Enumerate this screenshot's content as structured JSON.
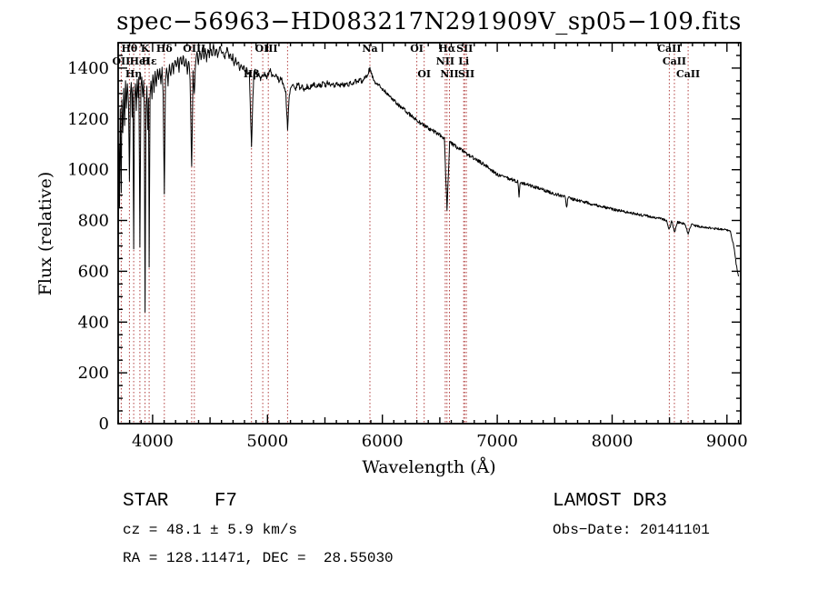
{
  "annotations": {
    "class_label": "STAR    F7",
    "survey": "LAMOST DR3",
    "cz": "cz = 48.1 ± 5.9 km/s",
    "obs_date": "Obs−Date: 20141101",
    "ra_dec": "RA = 128.11471, DEC =  28.55030"
  },
  "chart_data": {
    "type": "line",
    "title": "spec−56963−HD083217N291909V_sp05−109.fits",
    "xlabel": "Wavelength (Å)",
    "ylabel": "Flux (relative)",
    "xlim": [
      3700,
      9120
    ],
    "ylim": [
      0,
      1500
    ],
    "x_ticks": [
      4000,
      5000,
      6000,
      7000,
      8000,
      9000
    ],
    "y_ticks": [
      0,
      200,
      400,
      600,
      800,
      1000,
      1200,
      1400
    ],
    "x_minor_step": 100,
    "y_minor_step": 50,
    "grid": false,
    "legend": "none",
    "axis_color": "#000000",
    "line_color": "#000000",
    "marker_line_color": "#b24040",
    "label_color": "#5a1616",
    "spectral_markers": [
      3727,
      3798,
      3835,
      3889,
      3934,
      3970,
      4102,
      4340,
      4363,
      4861,
      4959,
      5007,
      5175,
      5892,
      6300,
      6364,
      6548,
      6563,
      6584,
      6708,
      6716,
      6731,
      8498,
      8542,
      8662
    ],
    "line_labels": [
      {
        "text": "Hθ",
        "wavelength": 3798,
        "row": 1
      },
      {
        "text": "K",
        "wavelength": 3934,
        "row": 1
      },
      {
        "text": "Hδ",
        "wavelength": 4102,
        "row": 1
      },
      {
        "text": "OIII",
        "wavelength": 4363,
        "row": 1
      },
      {
        "text": "OIII",
        "wavelength": 4990,
        "row": 1
      },
      {
        "text": "Na",
        "wavelength": 5892,
        "row": 1
      },
      {
        "text": "OI",
        "wavelength": 6300,
        "row": 1
      },
      {
        "text": "Hα",
        "wavelength": 6563,
        "row": 1
      },
      {
        "text": "SII",
        "wavelength": 6716,
        "row": 1
      },
      {
        "text": "CaII",
        "wavelength": 8498,
        "row": 1
      },
      {
        "text": "OII",
        "wavelength": 3727,
        "row": 2
      },
      {
        "text": "HeI",
        "wavelength": 3889,
        "row": 2
      },
      {
        "text": "Hε",
        "wavelength": 3970,
        "row": 2
      },
      {
        "text": "NII",
        "wavelength": 6548,
        "row": 2
      },
      {
        "text": "Li",
        "wavelength": 6708,
        "row": 2
      },
      {
        "text": "CaII",
        "wavelength": 8542,
        "row": 2
      },
      {
        "text": "Hη",
        "wavelength": 3835,
        "row": 3
      },
      {
        "text": "Hβ",
        "wavelength": 4861,
        "row": 3
      },
      {
        "text": "OI",
        "wavelength": 6364,
        "row": 3
      },
      {
        "text": "NII",
        "wavelength": 6584,
        "row": 3
      },
      {
        "text": "SII",
        "wavelength": 6731,
        "row": 3
      },
      {
        "text": "CaII",
        "wavelength": 8662,
        "row": 3
      }
    ],
    "spectrum": {
      "points": [
        [
          3700,
          640
        ],
        [
          3706,
          1100
        ],
        [
          3712,
          860
        ],
        [
          3718,
          1230
        ],
        [
          3724,
          1020
        ],
        [
          3727,
          900
        ],
        [
          3732,
          1280
        ],
        [
          3740,
          1140
        ],
        [
          3748,
          1320
        ],
        [
          3756,
          1180
        ],
        [
          3764,
          1340
        ],
        [
          3772,
          1240
        ],
        [
          3780,
          1350
        ],
        [
          3790,
          1260
        ],
        [
          3798,
          960
        ],
        [
          3806,
          1300
        ],
        [
          3814,
          1350
        ],
        [
          3822,
          1210
        ],
        [
          3828,
          1330
        ],
        [
          3835,
          690
        ],
        [
          3842,
          1280
        ],
        [
          3850,
          1340
        ],
        [
          3858,
          1240
        ],
        [
          3866,
          1350
        ],
        [
          3874,
          1280
        ],
        [
          3880,
          1360
        ],
        [
          3889,
          700
        ],
        [
          3898,
          1330
        ],
        [
          3906,
          1370
        ],
        [
          3914,
          1290
        ],
        [
          3922,
          1350
        ],
        [
          3928,
          1200
        ],
        [
          3934,
          440
        ],
        [
          3942,
          1250
        ],
        [
          3950,
          1320
        ],
        [
          3958,
          1150
        ],
        [
          3964,
          1280
        ],
        [
          3970,
          620
        ],
        [
          3978,
          1290
        ],
        [
          3986,
          1350
        ],
        [
          3994,
          1280
        ],
        [
          4002,
          1380
        ],
        [
          4012,
          1310
        ],
        [
          4022,
          1390
        ],
        [
          4032,
          1330
        ],
        [
          4042,
          1400
        ],
        [
          4052,
          1350
        ],
        [
          4062,
          1400
        ],
        [
          4072,
          1340
        ],
        [
          4082,
          1400
        ],
        [
          4092,
          1300
        ],
        [
          4102,
          900
        ],
        [
          4112,
          1360
        ],
        [
          4122,
          1400
        ],
        [
          4134,
          1340
        ],
        [
          4146,
          1420
        ],
        [
          4158,
          1370
        ],
        [
          4170,
          1430
        ],
        [
          4182,
          1380
        ],
        [
          4194,
          1440
        ],
        [
          4206,
          1400
        ],
        [
          4218,
          1440
        ],
        [
          4230,
          1390
        ],
        [
          4242,
          1450
        ],
        [
          4254,
          1410
        ],
        [
          4266,
          1450
        ],
        [
          4278,
          1400
        ],
        [
          4290,
          1440
        ],
        [
          4302,
          1380
        ],
        [
          4314,
          1430
        ],
        [
          4326,
          1360
        ],
        [
          4340,
          1010
        ],
        [
          4352,
          1380
        ],
        [
          4363,
          1300
        ],
        [
          4374,
          1420
        ],
        [
          4386,
          1460
        ],
        [
          4398,
          1420
        ],
        [
          4410,
          1470
        ],
        [
          4422,
          1440
        ],
        [
          4434,
          1480
        ],
        [
          4446,
          1440
        ],
        [
          4458,
          1470
        ],
        [
          4470,
          1430
        ],
        [
          4482,
          1480
        ],
        [
          4494,
          1450
        ],
        [
          4506,
          1480
        ],
        [
          4518,
          1440
        ],
        [
          4530,
          1490
        ],
        [
          4542,
          1450
        ],
        [
          4554,
          1480
        ],
        [
          4566,
          1440
        ],
        [
          4578,
          1470
        ],
        [
          4590,
          1490
        ],
        [
          4602,
          1450
        ],
        [
          4614,
          1470
        ],
        [
          4626,
          1440
        ],
        [
          4638,
          1460
        ],
        [
          4650,
          1480
        ],
        [
          4662,
          1440
        ],
        [
          4674,
          1460
        ],
        [
          4686,
          1430
        ],
        [
          4698,
          1450
        ],
        [
          4710,
          1420
        ],
        [
          4722,
          1440
        ],
        [
          4734,
          1410
        ],
        [
          4746,
          1430
        ],
        [
          4758,
          1400
        ],
        [
          4770,
          1420
        ],
        [
          4782,
          1390
        ],
        [
          4794,
          1410
        ],
        [
          4806,
          1390
        ],
        [
          4818,
          1400
        ],
        [
          4830,
          1380
        ],
        [
          4842,
          1390
        ],
        [
          4861,
          1090
        ],
        [
          4880,
          1380
        ],
        [
          4895,
          1390
        ],
        [
          4910,
          1370
        ],
        [
          4925,
          1380
        ],
        [
          4940,
          1360
        ],
        [
          4959,
          1370
        ],
        [
          4975,
          1380
        ],
        [
          4990,
          1360
        ],
        [
          5007,
          1380
        ],
        [
          5025,
          1390
        ],
        [
          5040,
          1370
        ],
        [
          5060,
          1360
        ],
        [
          5080,
          1370
        ],
        [
          5100,
          1350
        ],
        [
          5120,
          1360
        ],
        [
          5140,
          1330
        ],
        [
          5160,
          1300
        ],
        [
          5175,
          1160
        ],
        [
          5190,
          1290
        ],
        [
          5205,
          1330
        ],
        [
          5225,
          1340
        ],
        [
          5245,
          1320
        ],
        [
          5265,
          1340
        ],
        [
          5285,
          1320
        ],
        [
          5305,
          1330
        ],
        [
          5325,
          1310
        ],
        [
          5345,
          1330
        ],
        [
          5365,
          1320
        ],
        [
          5385,
          1330
        ],
        [
          5405,
          1340
        ],
        [
          5425,
          1320
        ],
        [
          5445,
          1340
        ],
        [
          5465,
          1330
        ],
        [
          5485,
          1340
        ],
        [
          5505,
          1330
        ],
        [
          5525,
          1345
        ],
        [
          5545,
          1330
        ],
        [
          5565,
          1340
        ],
        [
          5585,
          1325
        ],
        [
          5605,
          1340
        ],
        [
          5625,
          1330
        ],
        [
          5645,
          1340
        ],
        [
          5665,
          1330
        ],
        [
          5685,
          1345
        ],
        [
          5705,
          1335
        ],
        [
          5725,
          1345
        ],
        [
          5745,
          1335
        ],
        [
          5765,
          1350
        ],
        [
          5785,
          1340
        ],
        [
          5805,
          1355
        ],
        [
          5825,
          1345
        ],
        [
          5845,
          1360
        ],
        [
          5865,
          1370
        ],
        [
          5880,
          1385
        ],
        [
          5892,
          1400
        ],
        [
          5904,
          1380
        ],
        [
          5916,
          1365
        ],
        [
          5930,
          1350
        ],
        [
          5950,
          1340
        ],
        [
          5975,
          1330
        ],
        [
          6000,
          1320
        ],
        [
          6030,
          1305
        ],
        [
          6060,
          1290
        ],
        [
          6090,
          1278
        ],
        [
          6120,
          1265
        ],
        [
          6150,
          1252
        ],
        [
          6180,
          1240
        ],
        [
          6210,
          1228
        ],
        [
          6240,
          1217
        ],
        [
          6270,
          1206
        ],
        [
          6300,
          1195
        ],
        [
          6330,
          1185
        ],
        [
          6360,
          1176
        ],
        [
          6390,
          1167
        ],
        [
          6420,
          1158
        ],
        [
          6450,
          1150
        ],
        [
          6480,
          1142
        ],
        [
          6510,
          1134
        ],
        [
          6540,
          1122
        ],
        [
          6563,
          840
        ],
        [
          6585,
          1108
        ],
        [
          6610,
          1100
        ],
        [
          6640,
          1091
        ],
        [
          6670,
          1082
        ],
        [
          6700,
          1073
        ],
        [
          6730,
          1064
        ],
        [
          6760,
          1055
        ],
        [
          6790,
          1047
        ],
        [
          6820,
          1038
        ],
        [
          6850,
          1030
        ],
        [
          6880,
          1022
        ],
        [
          6910,
          1014
        ],
        [
          6940,
          1002
        ],
        [
          6970,
          992
        ],
        [
          7000,
          980
        ],
        [
          7030,
          975
        ],
        [
          7060,
          971
        ],
        [
          7090,
          966
        ],
        [
          7120,
          962
        ],
        [
          7150,
          957
        ],
        [
          7180,
          953
        ],
        [
          7190,
          895
        ],
        [
          7200,
          950
        ],
        [
          7240,
          944
        ],
        [
          7270,
          940
        ],
        [
          7300,
          935
        ],
        [
          7330,
          931
        ],
        [
          7360,
          926
        ],
        [
          7390,
          922
        ],
        [
          7420,
          917
        ],
        [
          7450,
          913
        ],
        [
          7480,
          908
        ],
        [
          7510,
          904
        ],
        [
          7540,
          900
        ],
        [
          7570,
          896
        ],
        [
          7594,
          893
        ],
        [
          7605,
          850
        ],
        [
          7616,
          890
        ],
        [
          7640,
          887
        ],
        [
          7670,
          883
        ],
        [
          7700,
          880
        ],
        [
          7730,
          876
        ],
        [
          7760,
          873
        ],
        [
          7790,
          869
        ],
        [
          7820,
          866
        ],
        [
          7850,
          862
        ],
        [
          7880,
          859
        ],
        [
          7910,
          855
        ],
        [
          7940,
          852
        ],
        [
          7970,
          848
        ],
        [
          8000,
          845
        ],
        [
          8030,
          842
        ],
        [
          8060,
          839
        ],
        [
          8090,
          837
        ],
        [
          8120,
          834
        ],
        [
          8150,
          831
        ],
        [
          8180,
          828
        ],
        [
          8210,
          826
        ],
        [
          8240,
          823
        ],
        [
          8270,
          820
        ],
        [
          8300,
          818
        ],
        [
          8330,
          815
        ],
        [
          8360,
          812
        ],
        [
          8390,
          810
        ],
        [
          8420,
          807
        ],
        [
          8450,
          804
        ],
        [
          8470,
          802
        ],
        [
          8498,
          765
        ],
        [
          8520,
          798
        ],
        [
          8542,
          755
        ],
        [
          8570,
          793
        ],
        [
          8600,
          790
        ],
        [
          8630,
          787
        ],
        [
          8662,
          750
        ],
        [
          8690,
          783
        ],
        [
          8720,
          780
        ],
        [
          8760,
          777
        ],
        [
          8800,
          774
        ],
        [
          8850,
          771
        ],
        [
          8900,
          768
        ],
        [
          8950,
          766
        ],
        [
          9000,
          764
        ],
        [
          9030,
          755
        ],
        [
          9060,
          700
        ],
        [
          9080,
          630
        ],
        [
          9100,
          580
        ]
      ]
    }
  }
}
